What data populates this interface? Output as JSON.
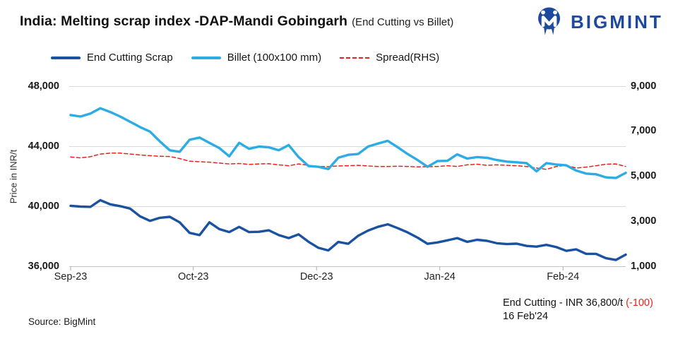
{
  "header": {
    "title_main": "India: Melting scrap index -DAP-Mandi Gobingarh",
    "title_sub": "(End Cutting vs Billet)",
    "brand": "BIGMINT"
  },
  "annotation": {
    "line1_text": "End Cutting - INR 36,800/t ",
    "line1_change": "(-100)",
    "line2": "16 Feb'24"
  },
  "footer": {
    "source": "Source: BigMint"
  },
  "colors": {
    "end_cutting": "#1a52a2",
    "billet": "#2bade4",
    "spread": "#e7231b",
    "brand_navy": "#1d4a9e",
    "gridline": "#d9d9d9",
    "axis_line": "#c4c4c4",
    "change_red": "#e7231b"
  },
  "chart_data": {
    "type": "line",
    "title": "India: Melting scrap index -DAP-Mandi Gobingarh (End Cutting vs Billet)",
    "xlabel": "",
    "ylabel": "Price in INR/t",
    "ylim_left": [
      36000,
      48000
    ],
    "ylim_right": [
      1000,
      9000
    ],
    "grid": "horizontal",
    "legend_position": "top-left",
    "yticks_left": {
      "values": [
        48000,
        44000,
        40000,
        36000
      ],
      "labels": [
        "48,000",
        "44,000",
        "40,000",
        "36,000"
      ]
    },
    "yticks_right": {
      "values": [
        9000,
        7000,
        5000,
        3000,
        1000
      ],
      "labels": [
        "9,000",
        "7,000",
        "5,000",
        "3,000",
        "1,000"
      ]
    },
    "xticks": [
      {
        "label": "Sep-23",
        "pos": 0.0
      },
      {
        "label": "Oct-23",
        "pos": 0.221
      },
      {
        "label": "Dec-23",
        "pos": 0.443
      },
      {
        "label": "Jan-24",
        "pos": 0.665
      },
      {
        "label": "Feb-24",
        "pos": 0.887
      }
    ],
    "series": [
      {
        "id": "spread-rhs",
        "name": "Spread(RHS)",
        "axis": "right",
        "color": "#e7231b",
        "width": 1.5,
        "dash": true,
        "values": [
          5870,
          5830,
          5880,
          6000,
          6040,
          6040,
          6000,
          5960,
          5930,
          5900,
          5890,
          5800,
          5680,
          5660,
          5640,
          5600,
          5560,
          5580,
          5540,
          5560,
          5570,
          5520,
          5480,
          5560,
          5500,
          5450,
          5440,
          5470,
          5480,
          5500,
          5470,
          5450,
          5450,
          5460,
          5450,
          5430,
          5440,
          5450,
          5480,
          5450,
          5520,
          5550,
          5500,
          5520,
          5500,
          5480,
          5450,
          5380,
          5320,
          5450,
          5500,
          5380,
          5420,
          5480,
          5550,
          5560,
          5450
        ]
      },
      {
        "id": "billet",
        "name": "Billet (100x100 mm)",
        "axis": "left",
        "color": "#2bade4",
        "width": 3.4,
        "dash": false,
        "values": [
          46100,
          46000,
          46200,
          46550,
          46300,
          46000,
          45650,
          45300,
          45000,
          44350,
          43750,
          43650,
          44450,
          44600,
          44250,
          43900,
          43350,
          44250,
          43850,
          44000,
          43950,
          43750,
          44100,
          43300,
          42700,
          42650,
          42500,
          43250,
          43450,
          43500,
          44000,
          44200,
          44380,
          43950,
          43500,
          43100,
          42650,
          43030,
          43050,
          43480,
          43200,
          43300,
          43250,
          43100,
          43000,
          42950,
          42900,
          42350,
          42900,
          42800,
          42750,
          42400,
          42200,
          42150,
          41950,
          41900,
          42250
        ]
      },
      {
        "id": "end-cutting-scrap",
        "name": "End Cutting Scrap",
        "axis": "left",
        "color": "#1a52a2",
        "width": 3.4,
        "dash": false,
        "values": [
          40050,
          40000,
          39980,
          40430,
          40150,
          40030,
          39870,
          39350,
          39050,
          39250,
          39320,
          38950,
          38250,
          38100,
          38950,
          38500,
          38300,
          38650,
          38300,
          38320,
          38420,
          38100,
          37900,
          38150,
          37650,
          37250,
          37080,
          37640,
          37520,
          38050,
          38400,
          38650,
          38820,
          38560,
          38280,
          37930,
          37520,
          37610,
          37750,
          37900,
          37650,
          37790,
          37720,
          37560,
          37500,
          37530,
          37380,
          37330,
          37450,
          37300,
          37050,
          37150,
          36850,
          36850,
          36560,
          36440,
          36800
        ]
      }
    ],
    "latest_point": {
      "series": "End Cutting Scrap",
      "value": 36800,
      "change": -100,
      "date": "16 Feb'24"
    }
  }
}
